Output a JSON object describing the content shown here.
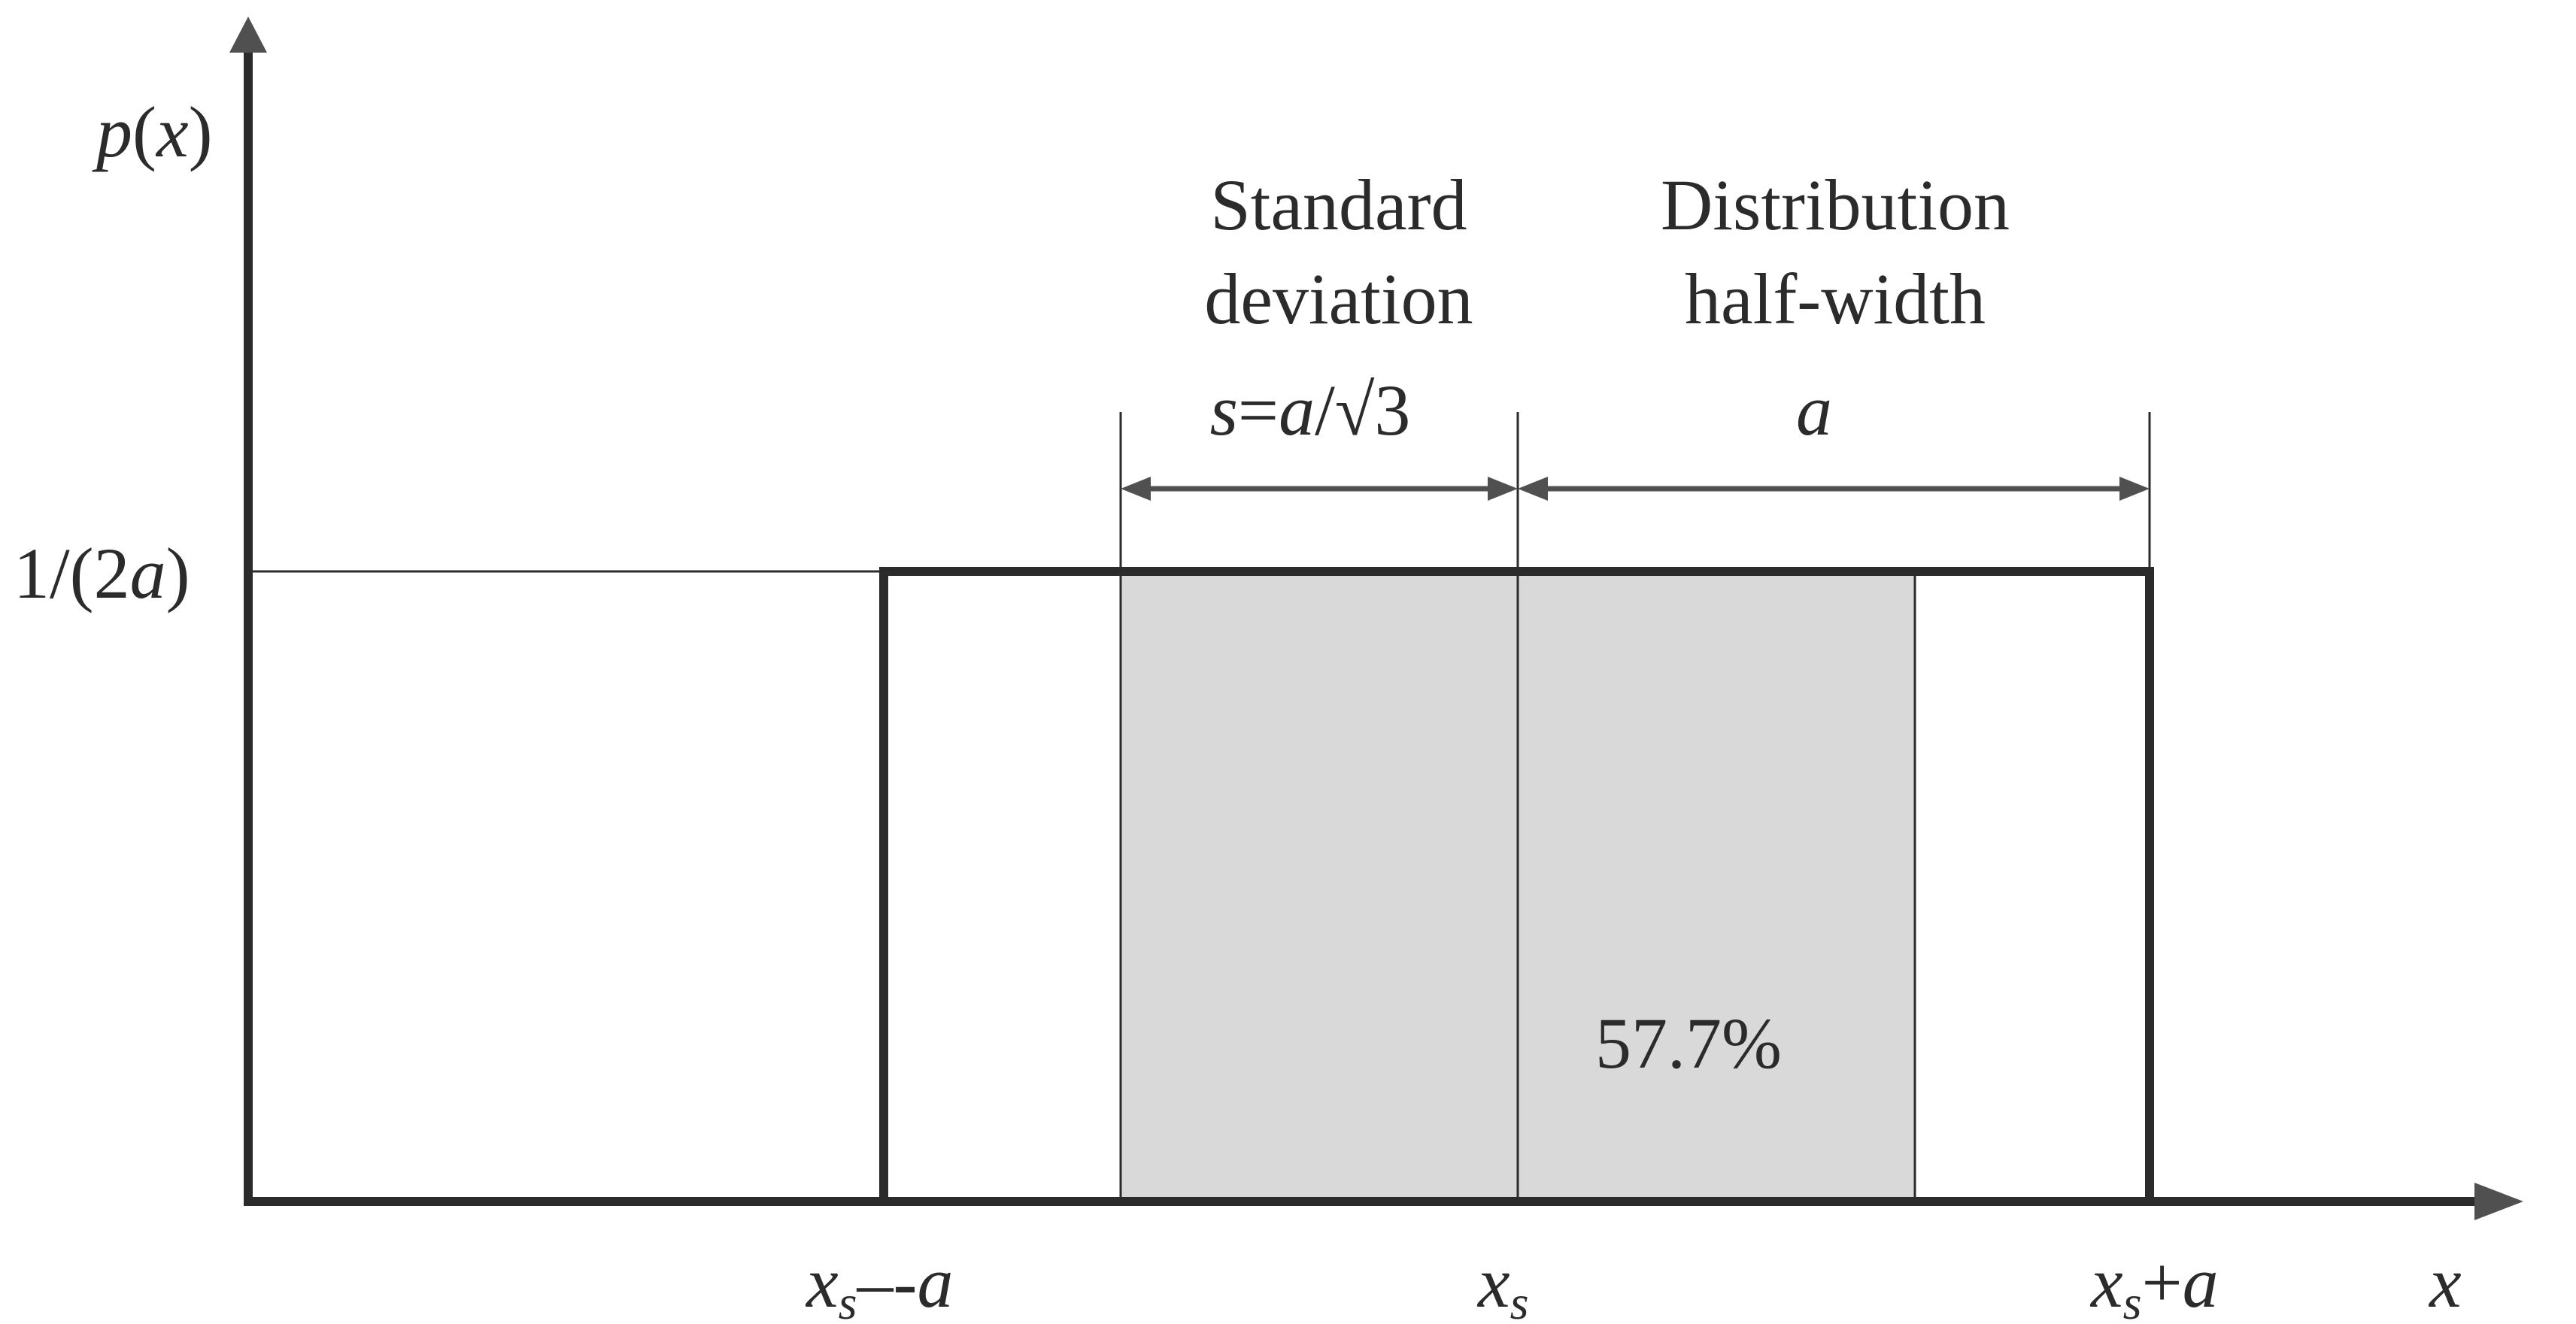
{
  "diagram": {
    "y_axis_label": {
      "p": "p",
      "open": "(",
      "x": "x",
      "close": ")"
    },
    "x_axis_label": "x",
    "y_tick": {
      "prefix": "1/(2",
      "var": "a",
      "suffix": ")"
    },
    "x_ticks": {
      "left": {
        "x": "x",
        "sub": "s",
        "op": "–-",
        "a": "a"
      },
      "center": {
        "x": "x",
        "sub": "s"
      },
      "right": {
        "x": "x",
        "sub": "s",
        "op": "+",
        "a": "a"
      }
    },
    "standard_deviation": {
      "line1": "Standard",
      "line2": "deviation",
      "formula": {
        "s": "s",
        "eq": "=",
        "a": "a",
        "rest": "/√3"
      }
    },
    "half_width": {
      "line1": "Distribution",
      "line2": "half-width",
      "symbol": "a"
    },
    "shaded_area_label": "57.7%",
    "colors": {
      "line": "#2b2b2b",
      "arrow": "#505050",
      "shade": "#d9d9d9"
    }
  }
}
